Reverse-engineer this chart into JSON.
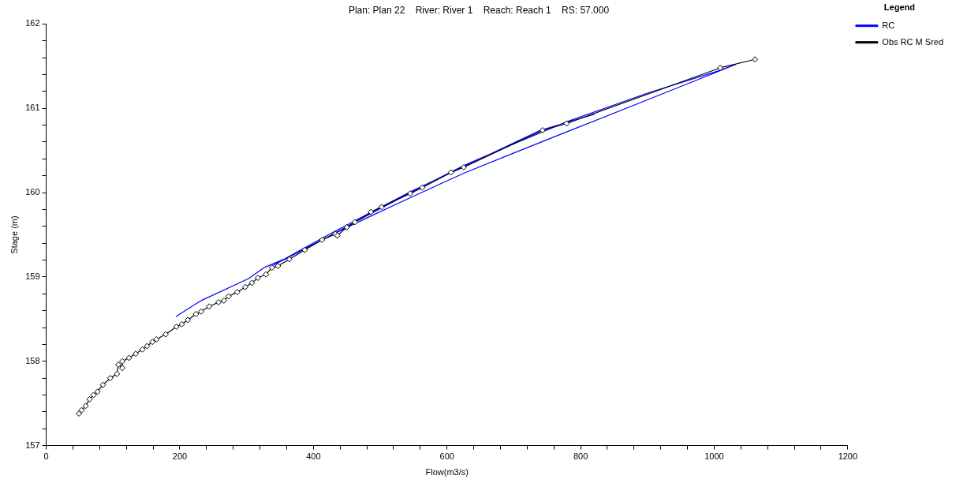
{
  "chart_data": {
    "type": "line",
    "title": "Plan: Plan 22    River: River 1    Reach: Reach 1    RS: 57.000",
    "xlabel": "Flow(m3/s)",
    "ylabel": "Stage (m)",
    "legend_title": "Legend",
    "legend": "top right",
    "grid": false,
    "xlim": [
      0,
      1200
    ],
    "ylim": [
      157,
      162
    ],
    "xticks": [
      0,
      {
        "value": 40,
        "label": null
      },
      {
        "value": 80,
        "label": null
      },
      {
        "value": 120,
        "label": null
      },
      {
        "value": 160,
        "label": null
      },
      200,
      {
        "value": 240,
        "label": null
      },
      {
        "value": 280,
        "label": null
      },
      {
        "value": 320,
        "label": null
      },
      {
        "value": 360,
        "label": null
      },
      400,
      {
        "value": 440,
        "label": null
      },
      {
        "value": 480,
        "label": null
      },
      {
        "value": 520,
        "label": null
      },
      {
        "value": 560,
        "label": null
      },
      600,
      {
        "value": 640,
        "label": null
      },
      {
        "value": 680,
        "label": null
      },
      {
        "value": 720,
        "label": null
      },
      {
        "value": 760,
        "label": null
      },
      800,
      {
        "value": 840,
        "label": null
      },
      {
        "value": 880,
        "label": null
      },
      {
        "value": 920,
        "label": null
      },
      {
        "value": 960,
        "label": null
      },
      1000,
      {
        "value": 1040,
        "label": null
      },
      {
        "value": 1080,
        "label": null
      },
      {
        "value": 1120,
        "label": null
      },
      {
        "value": 1160,
        "label": null
      },
      1200
    ],
    "yticks": [
      157,
      {
        "value": 157.2,
        "label": null
      },
      {
        "value": 157.4,
        "label": null
      },
      {
        "value": 157.6,
        "label": null
      },
      {
        "value": 157.8,
        "label": null
      },
      158,
      {
        "value": 158.2,
        "label": null
      },
      {
        "value": 158.4,
        "label": null
      },
      {
        "value": 158.6,
        "label": null
      },
      {
        "value": 158.8,
        "label": null
      },
      159,
      {
        "value": 159.2,
        "label": null
      },
      {
        "value": 159.4,
        "label": null
      },
      {
        "value": 159.6,
        "label": null
      },
      {
        "value": 159.8,
        "label": null
      },
      160,
      {
        "value": 160.2,
        "label": null
      },
      {
        "value": 160.4,
        "label": null
      },
      {
        "value": 160.6,
        "label": null
      },
      {
        "value": 160.8,
        "label": null
      },
      161,
      {
        "value": 161.2,
        "label": null
      },
      {
        "value": 161.4,
        "label": null
      },
      {
        "value": 161.6,
        "label": null
      },
      {
        "value": 161.8,
        "label": null
      },
      162
    ],
    "series": [
      {
        "name": "RC",
        "color": "#0000ff",
        "marker": "none",
        "x": [
          194,
          232,
          303,
          326,
          362,
          420,
          460,
          545,
          625,
          700,
          779,
          900,
          1009,
          1032,
          900,
          779,
          700,
          625,
          545,
          480,
          420,
          362,
          340,
          420,
          545,
          625,
          740,
          821
        ],
        "values": [
          158.53,
          158.72,
          158.98,
          159.11,
          159.23,
          159.47,
          159.64,
          160.0,
          160.32,
          160.58,
          160.84,
          161.18,
          161.45,
          161.52,
          161.1,
          160.72,
          160.47,
          160.23,
          159.94,
          159.7,
          159.47,
          159.23,
          159.14,
          159.49,
          160.01,
          160.31,
          160.74,
          160.93
        ]
      },
      {
        "name": "Obs RC M Sred",
        "color": "#000000",
        "marker": "diamond",
        "x": [
          49,
          53,
          59,
          65,
          71,
          77,
          85,
          96,
          106,
          108,
          114,
          114,
          124,
          134,
          144,
          151,
          159,
          165,
          179,
          195,
          203,
          212,
          224,
          232,
          244,
          258,
          266,
          273,
          286,
          298,
          308,
          317,
          329,
          338,
          347,
          364,
          387,
          413,
          433,
          436,
          450,
          462,
          486,
          502,
          545,
          563,
          606,
          625,
          743,
          779,
          1009,
          1061
        ],
        "values": [
          157.38,
          157.42,
          157.47,
          157.55,
          157.6,
          157.64,
          157.72,
          157.8,
          157.85,
          157.96,
          157.92,
          158.0,
          158.04,
          158.09,
          158.14,
          158.18,
          158.23,
          158.26,
          158.32,
          158.41,
          158.44,
          158.49,
          158.56,
          158.59,
          158.65,
          158.7,
          158.72,
          158.77,
          158.82,
          158.88,
          158.93,
          158.99,
          159.03,
          159.11,
          159.13,
          159.21,
          159.32,
          159.44,
          159.51,
          159.49,
          159.59,
          159.65,
          159.77,
          159.83,
          159.99,
          160.06,
          160.24,
          160.3,
          160.74,
          160.82,
          161.48,
          161.58
        ]
      }
    ]
  }
}
